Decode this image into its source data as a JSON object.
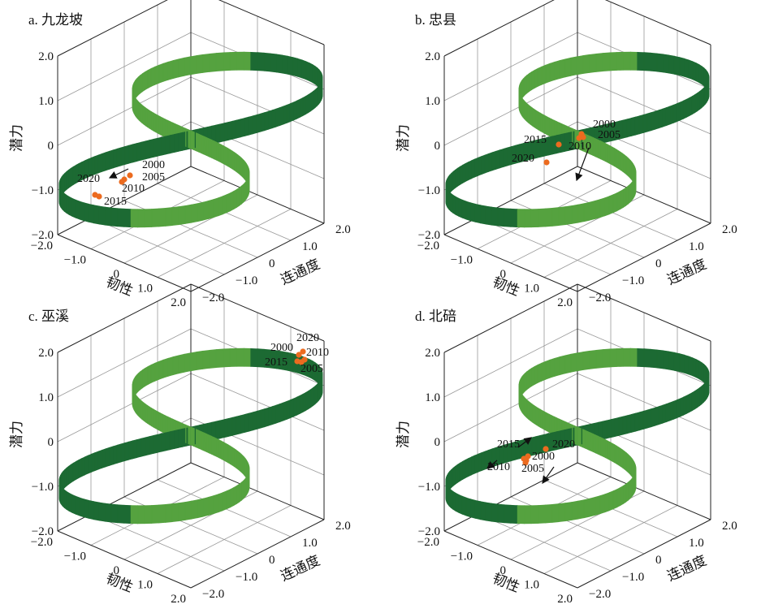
{
  "panels": [
    {
      "title": "a. 九龙坡",
      "z_label": "潜力",
      "x_label": "韧性",
      "y_label": "连通度",
      "z_ticks": [
        "2.0",
        "1.0",
        "0",
        "−1.0",
        "−2.0"
      ],
      "x_ticks": [
        "−2.0",
        "−1.0",
        "0",
        "1.0",
        "2.0"
      ],
      "y_ticks": [
        "−2.0",
        "−1.0",
        "0",
        "1.0",
        "2.0"
      ],
      "points": [
        "2000",
        "2005",
        "2010",
        "2015",
        "2020"
      ]
    },
    {
      "title": "b. 忠县",
      "z_label": "潜力",
      "x_label": "韧性",
      "y_label": "连通度",
      "z_ticks": [
        "2.0",
        "1.0",
        "0",
        "−1.0",
        "−2.0"
      ],
      "x_ticks": [
        "−2.0",
        "−1.0",
        "0",
        "1.0",
        "2.0"
      ],
      "y_ticks": [
        "−2.0",
        "−1.0",
        "0",
        "1.0",
        "2.0"
      ],
      "points": [
        "2000",
        "2005",
        "2010",
        "2015",
        "2020"
      ]
    },
    {
      "title": "c. 巫溪",
      "z_label": "潜力",
      "x_label": "韧性",
      "y_label": "连通度",
      "z_ticks": [
        "2.0",
        "1.0",
        "0",
        "−1.0",
        "−2.0"
      ],
      "x_ticks": [
        "−2.0",
        "−1.0",
        "0",
        "1.0",
        "2.0"
      ],
      "y_ticks": [
        "−2.0",
        "−1.0",
        "0",
        "1.0",
        "2.0"
      ],
      "points": [
        "2020",
        "2000",
        "2010",
        "2015",
        "2005"
      ]
    },
    {
      "title": "d. 北碚",
      "z_label": "潜力",
      "x_label": "韧性",
      "y_label": "连通度",
      "z_ticks": [
        "2.0",
        "1.0",
        "0",
        "−1.0",
        "−2.0"
      ],
      "x_ticks": [
        "−2.0",
        "−1.0",
        "0",
        "1.0",
        "2.0"
      ],
      "y_ticks": [
        "−2.0",
        "−1.0",
        "0",
        "1.0",
        "2.0"
      ],
      "points": [
        "2015",
        "2020",
        "2000",
        "2010",
        "2005"
      ]
    }
  ]
}
